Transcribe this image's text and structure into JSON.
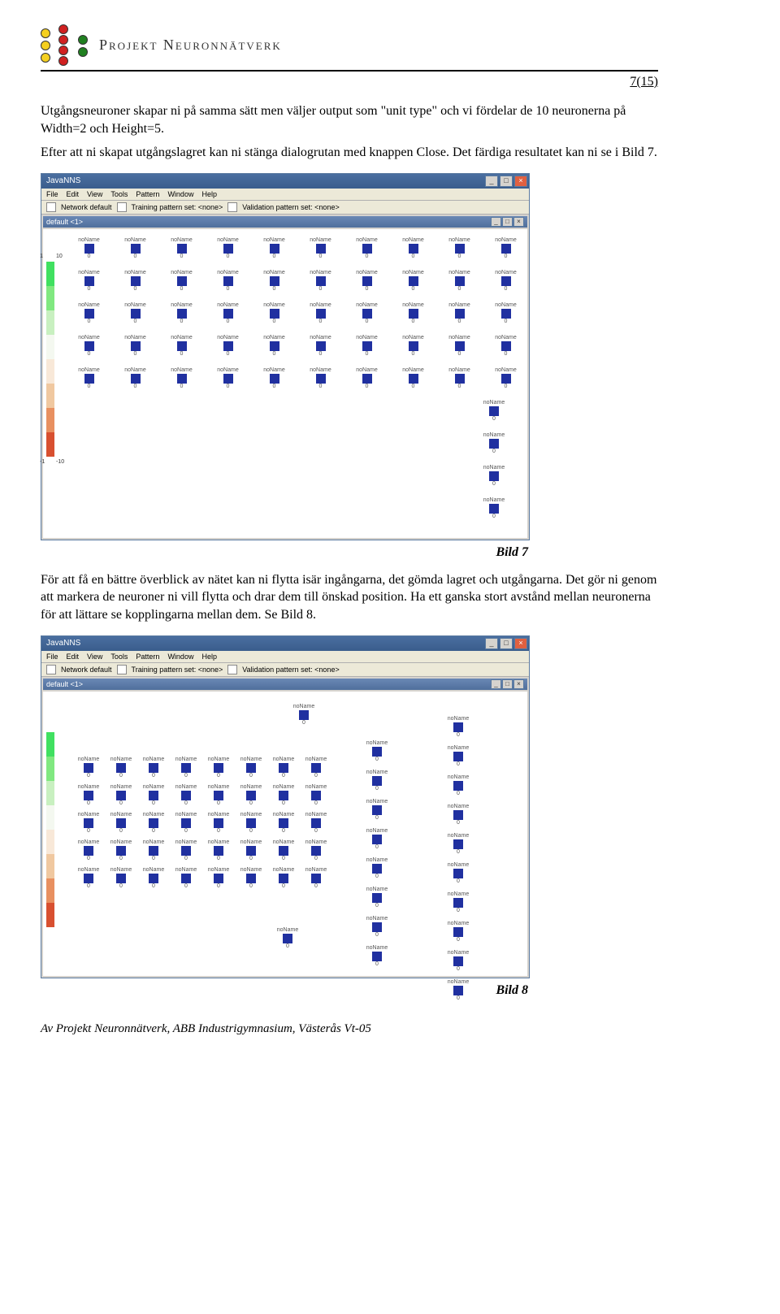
{
  "header": {
    "brand": "Projekt Neuronnätverk",
    "page_number": "7(15)"
  },
  "logo": {
    "layer1_color": "#f5d020",
    "layer2_color": "#d02020",
    "layer3_color": "#208020",
    "line_color": "#888888"
  },
  "para1": "Utgångsneuroner skapar ni på samma sätt men väljer output som \"unit type\" och vi fördelar de 10 neuronerna på Width=2 och Height=5.",
  "para2": "Efter att ni skapat utgångslagret kan ni stänga dialogrutan med knappen Close. Det färdiga resultatet kan ni se i Bild 7.",
  "app": {
    "title": "JavaNNS",
    "menu": [
      "File",
      "Edit",
      "View",
      "Tools",
      "Pattern",
      "Window",
      "Help"
    ],
    "toolbar_text1": "Network default",
    "toolbar_text2": "Training pattern set: <none>",
    "toolbar_text3": "Validation pattern set: <none>",
    "sub_title": "default <1>",
    "node_label": "noName",
    "node_zero": "0",
    "colorbar": {
      "top_left": "1",
      "top_right": "10",
      "bot_left": "-1",
      "bot_right": "-10",
      "segments": [
        "#40e060",
        "#80e880",
        "#c8f0c0",
        "#f4f8f0",
        "#f8e8d8",
        "#f0c8a0",
        "#e89060",
        "#d85030"
      ]
    }
  },
  "fig7": {
    "caption": "Bild 7",
    "rows": 5,
    "cols": 10,
    "extra_col_count": 4
  },
  "para3": "För att få en bättre överblick av nätet kan ni flytta isär ingångarna, det gömda lagret och utgångarna. Det gör ni genom att markera de neuroner ni vill flytta och drar dem till önskad position. Ha ett ganska stort avstånd mellan neuronerna för att lättare se kopplingarna mellan dem. Se Bild 8.",
  "fig8": {
    "caption": "Bild 8"
  },
  "footer": "Av Projekt Neuronnätverk, ABB Industrigymnasium, Västerås Vt-05"
}
